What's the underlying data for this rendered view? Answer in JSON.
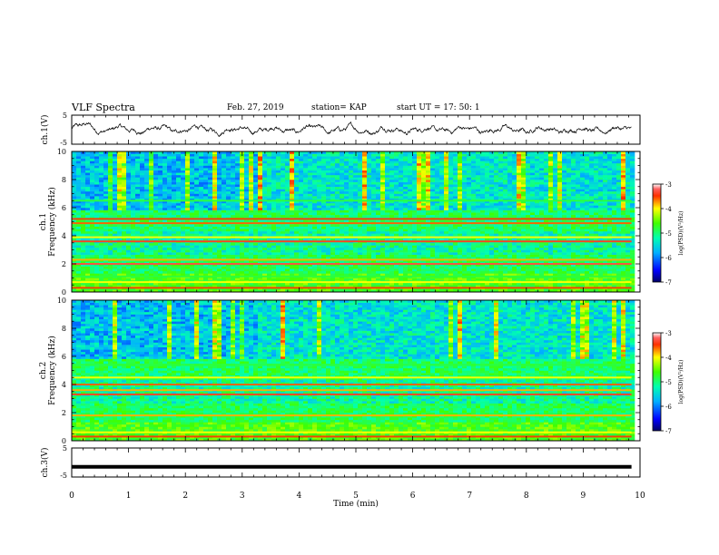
{
  "header": {
    "title": "VLF Spectra",
    "date": "Feb. 27, 2019",
    "station": "station= KAP",
    "start": "start  UT =   17: 50: 1"
  },
  "chart_data": [
    {
      "type": "line",
      "panel": "ch1-waveform",
      "ylabel": "ch.1(V)",
      "ylim": [
        -5,
        5
      ],
      "yticks": [
        "5",
        "-5"
      ],
      "x_range": [
        0,
        9.85
      ],
      "description_values": "continuous noisy waveform oscillating roughly between -1.5 and 1.5 V"
    },
    {
      "type": "heatmap",
      "panel": "ch1-spectrogram",
      "ylabel": "ch.1\nFrequency (kHz)",
      "ylim": [
        0,
        10
      ],
      "yticks": [
        "0",
        "2",
        "4",
        "6",
        "8",
        "10"
      ],
      "x_range": [
        0,
        9.85
      ],
      "colorbar": {
        "label": "log(PSD)(V²/Hz)",
        "range": [
          -7,
          -3
        ],
        "ticks": [
          "-3",
          "-4",
          "-5",
          "-6",
          "-7"
        ]
      },
      "bands": [
        {
          "f": 0.3,
          "level": -3.5
        },
        {
          "f": 0.7,
          "level": -4.0
        },
        {
          "f": 1.1,
          "level": -4.8
        },
        {
          "f": 2.0,
          "level": -3.3
        },
        {
          "f": 2.3,
          "level": -3.8
        },
        {
          "f": 3.6,
          "level": -3.4
        },
        {
          "f": 3.9,
          "level": -4.0
        },
        {
          "f": 4.9,
          "level": -3.6
        },
        {
          "f": 5.2,
          "level": -3.5
        },
        {
          "f": 6.5,
          "level": -4.8
        }
      ]
    },
    {
      "type": "heatmap",
      "panel": "ch2-spectrogram",
      "ylabel": "ch.2\nFrequency (kHz)",
      "ylim": [
        0,
        10
      ],
      "yticks": [
        "0",
        "2",
        "4",
        "6",
        "8",
        "10"
      ],
      "x_range": [
        0,
        9.85
      ],
      "colorbar": {
        "label": "log(PSD)(V²/Hz)",
        "range": [
          -7,
          -3
        ],
        "ticks": [
          "-3",
          "-4",
          "-5",
          "-6",
          "-7"
        ]
      },
      "bands": [
        {
          "f": 0.3,
          "level": -3.5
        },
        {
          "f": 0.6,
          "level": -4.0
        },
        {
          "f": 1.8,
          "level": -3.8
        },
        {
          "f": 3.3,
          "level": -3.4
        },
        {
          "f": 3.6,
          "level": -3.8
        },
        {
          "f": 4.0,
          "level": -3.6
        },
        {
          "f": 4.5,
          "level": -4.0
        },
        {
          "f": 5.4,
          "level": -4.8
        }
      ]
    },
    {
      "type": "line",
      "panel": "ch3-waveform",
      "ylabel": "ch.3(V)",
      "ylim": [
        -5,
        5
      ],
      "yticks": [
        "5",
        "-5"
      ],
      "x_range": [
        0,
        9.85
      ],
      "constant_value": -1.5
    }
  ],
  "xaxis": {
    "label": "Time  (min)",
    "xlim": [
      0,
      10
    ],
    "ticks": [
      "0",
      "1",
      "2",
      "3",
      "4",
      "5",
      "6",
      "7",
      "8",
      "9",
      "10"
    ]
  }
}
